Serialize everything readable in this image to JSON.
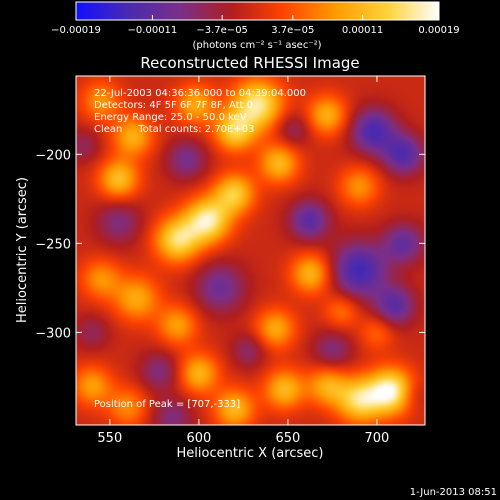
{
  "chart_data": {
    "type": "heatmap",
    "title": "Reconstructed RHESSI Image",
    "xlabel": "Heliocentric X (arcsec)",
    "ylabel": "Heliocentric Y (arcsec)",
    "xlim": [
      531,
      727
    ],
    "ylim": [
      -352,
      -156
    ],
    "x_ticks": [
      550,
      600,
      650,
      700
    ],
    "x_tick_labels": [
      "550",
      "600",
      "650",
      "700"
    ],
    "y_ticks": [
      -200,
      -250,
      -300
    ],
    "y_tick_labels": [
      "−200",
      "−250",
      "−300"
    ],
    "colorbar": {
      "range": [
        -0.00019,
        0.00019
      ],
      "ticks": [
        -0.00019,
        -0.00011,
        -3.7e-05,
        3.7e-05,
        0.00011,
        0.00019
      ],
      "tick_labels": [
        "−0.00019",
        "−0.00011",
        "−3.7e−05",
        "3.7e−05",
        "0.00011",
        "0.00019"
      ],
      "unit_label": "(photons cm⁻² s⁻¹ asec⁻²)",
      "colors": [
        "#1010ff",
        "#4a2ab0",
        "#7a2f8a",
        "#b01e1e",
        "#ff4400",
        "#ff9a00",
        "#ffd23a",
        "#ffffff"
      ]
    },
    "annotations": {
      "time_range": "22-Jul-2003 04:36:36.000 to 04:39:04.000",
      "detectors": "Detectors: 4F 5F 6F 7F 8F, Att 0",
      "energy": "Energy Range: 25.0 - 50.0 keV",
      "clean": "Clean     Total counts: 2.70E+03",
      "peak": "Position of Peak = [707,-333]"
    },
    "sources": [
      {
        "x": 708,
        "y": -333,
        "amp": 1.0,
        "s": 9
      },
      {
        "x": 690,
        "y": -338,
        "amp": 0.8,
        "s": 9
      },
      {
        "x": 672,
        "y": -330,
        "amp": 0.55,
        "s": 8
      },
      {
        "x": 605,
        "y": -237,
        "amp": 0.92,
        "s": 9
      },
      {
        "x": 588,
        "y": -248,
        "amp": 0.82,
        "s": 9
      },
      {
        "x": 620,
        "y": -222,
        "amp": 0.72,
        "s": 8
      },
      {
        "x": 633,
        "y": -172,
        "amp": 0.9,
        "s": 10
      },
      {
        "x": 620,
        "y": -187,
        "amp": 0.72,
        "s": 8
      },
      {
        "x": 598,
        "y": -172,
        "amp": 0.55,
        "s": 8
      },
      {
        "x": 645,
        "y": -205,
        "amp": 0.62,
        "s": 8
      },
      {
        "x": 555,
        "y": -214,
        "amp": 0.66,
        "s": 8
      },
      {
        "x": 563,
        "y": -190,
        "amp": 0.58,
        "s": 8
      },
      {
        "x": 545,
        "y": -170,
        "amp": 0.45,
        "s": 8
      },
      {
        "x": 672,
        "y": -178,
        "amp": 0.58,
        "s": 8
      },
      {
        "x": 690,
        "y": -218,
        "amp": 0.45,
        "s": 8
      },
      {
        "x": 565,
        "y": -281,
        "amp": 0.55,
        "s": 9
      },
      {
        "x": 545,
        "y": -270,
        "amp": 0.45,
        "s": 8
      },
      {
        "x": 588,
        "y": -296,
        "amp": 0.5,
        "s": 8
      },
      {
        "x": 600,
        "y": -323,
        "amp": 0.6,
        "s": 8
      },
      {
        "x": 620,
        "y": -343,
        "amp": 0.62,
        "s": 8
      },
      {
        "x": 648,
        "y": -332,
        "amp": 0.62,
        "s": 8
      },
      {
        "x": 643,
        "y": -298,
        "amp": 0.55,
        "s": 8
      },
      {
        "x": 663,
        "y": -267,
        "amp": 0.62,
        "s": 8
      },
      {
        "x": 540,
        "y": -330,
        "amp": 0.5,
        "s": 8
      },
      {
        "x": 560,
        "y": -342,
        "amp": 0.42,
        "s": 8
      },
      {
        "x": 680,
        "y": -288,
        "amp": 0.35,
        "s": 7
      },
      {
        "x": 700,
        "y": -300,
        "amp": 0.3,
        "s": 7
      },
      {
        "x": 555,
        "y": -238,
        "amp": -0.35,
        "s": 9
      },
      {
        "x": 593,
        "y": -203,
        "amp": -0.4,
        "s": 8
      },
      {
        "x": 612,
        "y": -275,
        "amp": -0.45,
        "s": 10
      },
      {
        "x": 578,
        "y": -322,
        "amp": -0.35,
        "s": 8
      },
      {
        "x": 662,
        "y": -237,
        "amp": -0.55,
        "s": 8
      },
      {
        "x": 690,
        "y": -265,
        "amp": -0.7,
        "s": 11
      },
      {
        "x": 710,
        "y": -285,
        "amp": -0.55,
        "s": 8
      },
      {
        "x": 715,
        "y": -250,
        "amp": -0.5,
        "s": 8
      },
      {
        "x": 698,
        "y": -187,
        "amp": -0.65,
        "s": 9
      },
      {
        "x": 715,
        "y": -200,
        "amp": -0.6,
        "s": 8
      },
      {
        "x": 653,
        "y": -186,
        "amp": -0.3,
        "s": 7
      },
      {
        "x": 628,
        "y": -310,
        "amp": -0.3,
        "s": 7
      },
      {
        "x": 675,
        "y": -310,
        "amp": -0.35,
        "s": 8
      },
      {
        "x": 585,
        "y": -348,
        "amp": -0.35,
        "s": 8
      },
      {
        "x": 540,
        "y": -300,
        "amp": -0.25,
        "s": 7
      },
      {
        "x": 720,
        "y": -335,
        "amp": -0.2,
        "s": 6
      },
      {
        "x": 535,
        "y": -195,
        "amp": -0.25,
        "s": 7
      }
    ]
  },
  "footer": {
    "timestamp": "1-Jun-2013 08:51"
  }
}
